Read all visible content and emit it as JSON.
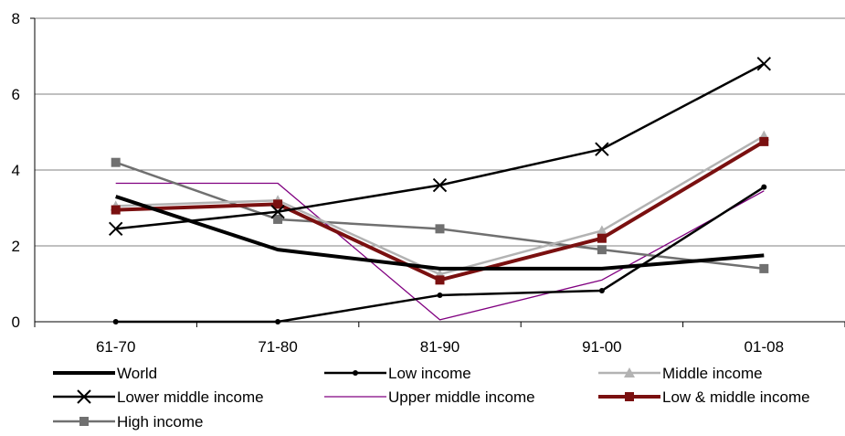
{
  "chart_data": {
    "type": "line",
    "categories": [
      "61-70",
      "71-80",
      "81-90",
      "91-00",
      "01-08"
    ],
    "ylim": [
      0,
      8
    ],
    "yticks": [
      0,
      2,
      4,
      6,
      8
    ],
    "grid": true,
    "legend_position": "bottom",
    "series": [
      {
        "name": "World",
        "values": [
          3.3,
          1.9,
          1.4,
          1.4,
          1.75
        ],
        "color": "#000000",
        "marker": "none",
        "style": "thick"
      },
      {
        "name": "Low income",
        "values": [
          0.0,
          0.0,
          0.7,
          0.82,
          3.55
        ],
        "color": "#000000",
        "marker": "dot",
        "style": "medium"
      },
      {
        "name": "Middle income",
        "values": [
          3.05,
          3.2,
          1.25,
          2.4,
          4.9
        ],
        "color": "#b3b3b3",
        "marker": "triangle",
        "style": "medium"
      },
      {
        "name": "Lower middle income",
        "values": [
          2.45,
          2.9,
          3.6,
          4.55,
          6.8
        ],
        "color": "#000000",
        "marker": "x",
        "style": "medium"
      },
      {
        "name": "Upper middle income",
        "values": [
          3.65,
          3.65,
          0.05,
          1.1,
          3.45
        ],
        "color": "#800080",
        "marker": "none",
        "style": "thin"
      },
      {
        "name": "Low & middle income",
        "values": [
          2.95,
          3.1,
          1.1,
          2.2,
          4.75
        ],
        "color": "#7a1010",
        "marker": "square",
        "style": "thick"
      },
      {
        "name": "High income",
        "values": [
          4.2,
          2.7,
          2.45,
          1.9,
          1.4
        ],
        "color": "#707070",
        "marker": "square",
        "style": "medium"
      }
    ]
  }
}
